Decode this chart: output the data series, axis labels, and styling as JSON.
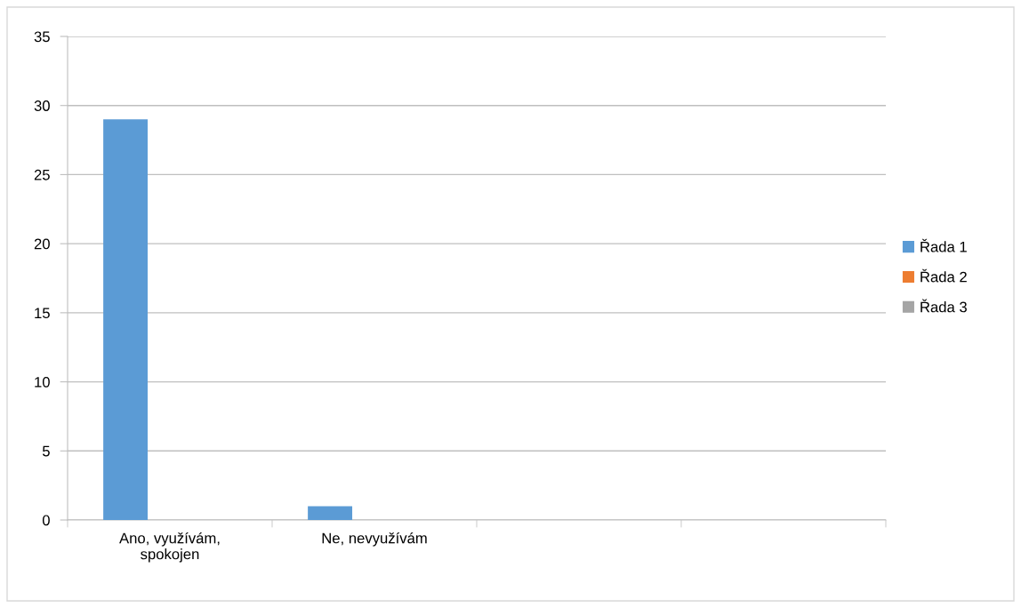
{
  "chart_data": {
    "type": "bar",
    "categories": [
      "Ano, využívám,\nspokojen",
      "Ne, nevyužívám",
      null,
      null
    ],
    "series": [
      {
        "name": "Řada 1",
        "color": "#5b9bd5",
        "values": [
          29,
          1,
          null,
          null
        ]
      },
      {
        "name": "Řada 2",
        "color": "#ed7d31",
        "values": [
          null,
          null,
          null,
          null
        ]
      },
      {
        "name": "Řada 3",
        "color": "#a5a5a5",
        "values": [
          null,
          null,
          null,
          null
        ]
      }
    ],
    "ylim": [
      0,
      35
    ],
    "yticks": [
      0,
      5,
      10,
      15,
      20,
      25,
      30,
      35
    ],
    "grid": "y",
    "legend": "right"
  }
}
